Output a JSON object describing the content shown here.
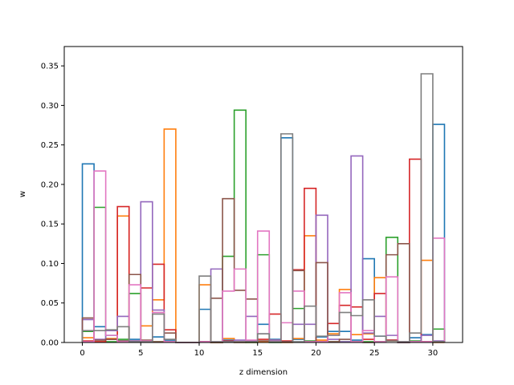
{
  "chart_data": {
    "type": "step-histogram",
    "title": "",
    "xlabel": "z dimension",
    "ylabel": "w",
    "xlim": [
      -1.55,
      32.55
    ],
    "ylim": [
      0,
      0.3745
    ],
    "xticks": [
      0,
      5,
      10,
      15,
      20,
      25,
      30
    ],
    "yticks": [
      0.0,
      0.05,
      0.1,
      0.15,
      0.2,
      0.25,
      0.3,
      0.35
    ],
    "ytick_labels": [
      "0.00",
      "0.05",
      "0.10",
      "0.15",
      "0.20",
      "0.25",
      "0.30",
      "0.35"
    ],
    "bin_edges": [
      0,
      1,
      2,
      3,
      4,
      5,
      6,
      7,
      8,
      9,
      10,
      11,
      12,
      13,
      14,
      15,
      16,
      17,
      18,
      19,
      20,
      21,
      22,
      23,
      24,
      25,
      26,
      27,
      28,
      29,
      30,
      31
    ],
    "grid": false,
    "legend": "none",
    "series": [
      {
        "color": "#1f77b4",
        "values": [
          0.226,
          0.02,
          0.009,
          0.002,
          0.004,
          0.001,
          0.007,
          0.003,
          0.0,
          0.0,
          0.042,
          0.0,
          0.003,
          0.0,
          0.002,
          0.023,
          0.004,
          0.259,
          0.004,
          0.001,
          0.007,
          0.014,
          0.014,
          0.003,
          0.106,
          0.008,
          0.003,
          0.0,
          0.006,
          0.01,
          0.276
        ]
      },
      {
        "color": "#ff7f0e",
        "values": [
          0.006,
          0.001,
          0.005,
          0.16,
          0.002,
          0.021,
          0.054,
          0.27,
          0.0,
          0.0,
          0.073,
          0.0,
          0.005,
          0.0,
          0.0,
          0.001,
          0.003,
          0.0,
          0.005,
          0.135,
          0.003,
          0.011,
          0.067,
          0.01,
          0.011,
          0.082,
          0.002,
          0.0,
          0.001,
          0.104,
          0.0
        ]
      },
      {
        "color": "#2ca02c",
        "values": [
          0.014,
          0.171,
          0.001,
          0.004,
          0.062,
          0.001,
          0.001,
          0.001,
          0.0,
          0.0,
          0.001,
          0.0,
          0.109,
          0.294,
          0.0,
          0.111,
          0.0,
          0.001,
          0.043,
          0.002,
          0.001,
          0.001,
          0.001,
          0.001,
          0.001,
          0.001,
          0.133,
          0.0,
          0.002,
          0.001,
          0.017
        ]
      },
      {
        "color": "#d62728",
        "values": [
          0.002,
          0.001,
          0.004,
          0.172,
          0.001,
          0.069,
          0.099,
          0.016,
          0.0,
          0.0,
          0.001,
          0.0,
          0.002,
          0.001,
          0.001,
          0.004,
          0.036,
          0.002,
          0.092,
          0.195,
          0.001,
          0.024,
          0.047,
          0.045,
          0.004,
          0.062,
          0.003,
          0.0,
          0.232,
          0.001,
          0.001
        ]
      },
      {
        "color": "#9467bd",
        "values": [
          0.029,
          0.004,
          0.015,
          0.033,
          0.002,
          0.178,
          0.041,
          0.001,
          0.0,
          0.0,
          0.001,
          0.093,
          0.001,
          0.003,
          0.033,
          0.011,
          0.003,
          0.001,
          0.023,
          0.023,
          0.161,
          0.004,
          0.001,
          0.236,
          0.012,
          0.033,
          0.009,
          0.0,
          0.001,
          0.009,
          0.002
        ]
      },
      {
        "color": "#8c564b",
        "values": [
          0.031,
          0.003,
          0.004,
          0.002,
          0.086,
          0.003,
          0.001,
          0.012,
          0.0,
          0.0,
          0.001,
          0.056,
          0.182,
          0.066,
          0.055,
          0.002,
          0.001,
          0.001,
          0.091,
          0.001,
          0.101,
          0.001,
          0.004,
          0.001,
          0.0,
          0.001,
          0.111,
          0.125,
          0.001,
          0.001,
          0.001
        ]
      },
      {
        "color": "#e377c2",
        "values": [
          0.001,
          0.217,
          0.009,
          0.001,
          0.073,
          0.002,
          0.038,
          0.001,
          0.0,
          0.0,
          0.001,
          0.001,
          0.065,
          0.093,
          0.003,
          0.141,
          0.001,
          0.025,
          0.065,
          0.001,
          0.001,
          0.009,
          0.063,
          0.001,
          0.015,
          0.001,
          0.083,
          0.001,
          0.001,
          0.001,
          0.132
        ]
      },
      {
        "color": "#7f7f7f",
        "values": [
          0.015,
          0.015,
          0.016,
          0.02,
          0.001,
          0.001,
          0.036,
          0.004,
          0.0,
          0.0,
          0.084,
          0.001,
          0.001,
          0.001,
          0.001,
          0.011,
          0.001,
          0.264,
          0.001,
          0.046,
          0.008,
          0.009,
          0.038,
          0.034,
          0.054,
          0.008,
          0.002,
          0.001,
          0.012,
          0.34,
          0.001
        ]
      }
    ]
  }
}
